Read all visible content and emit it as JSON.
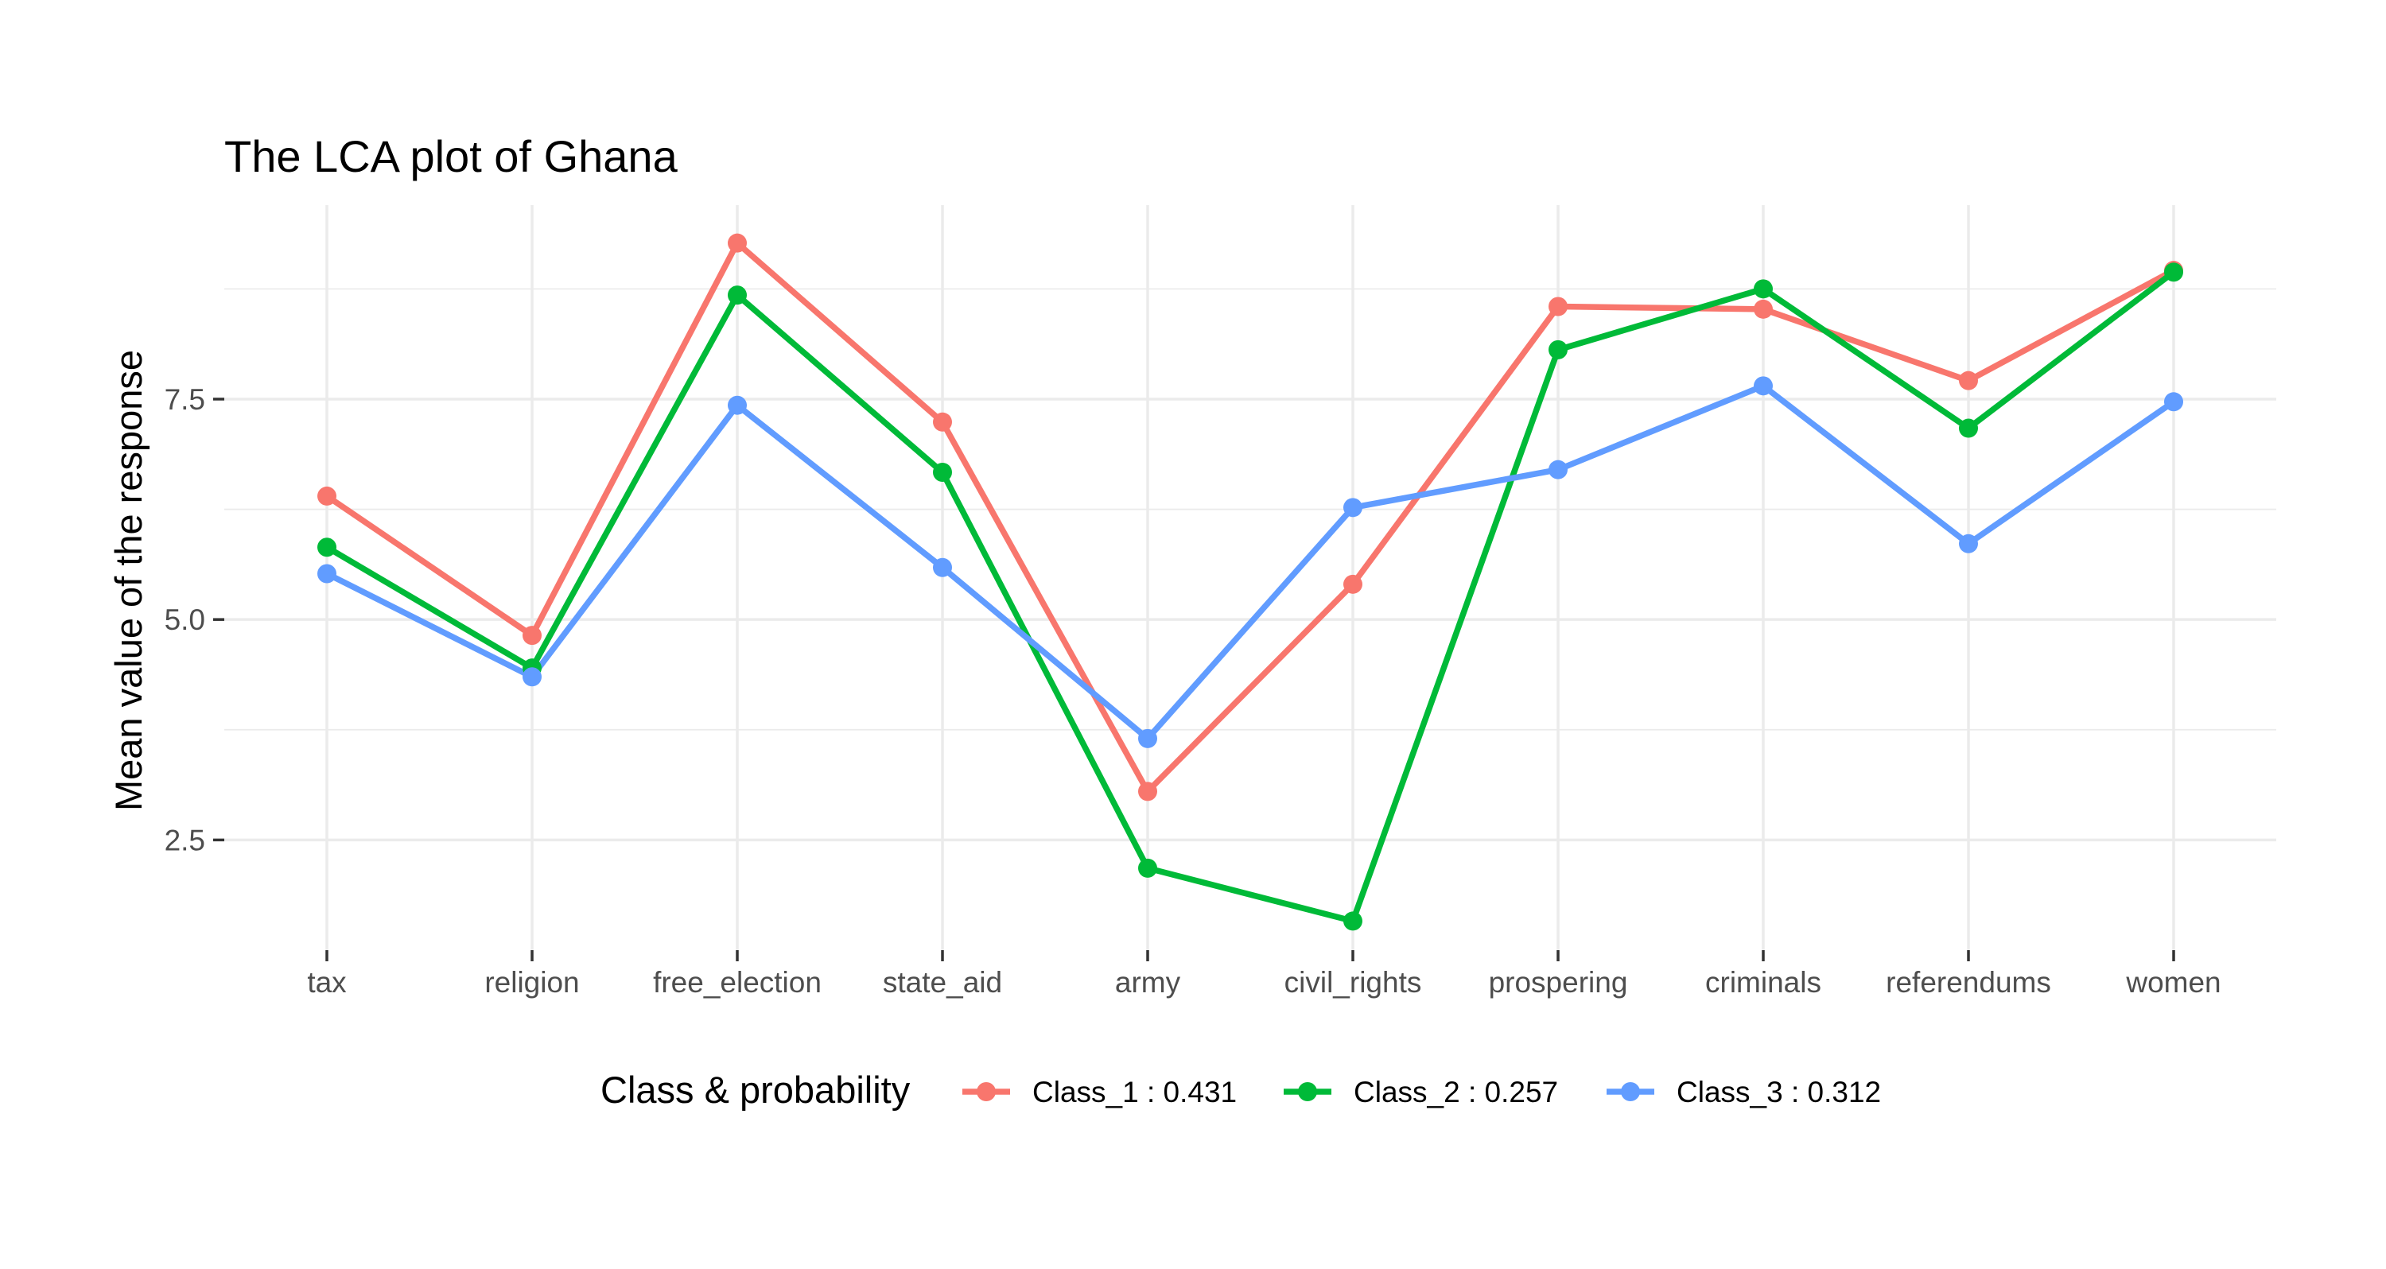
{
  "chart_data": {
    "type": "line",
    "title": "The LCA plot of Ghana",
    "xlabel": "",
    "ylabel": "Mean value of the response",
    "categories": [
      "tax",
      "religion",
      "free_election",
      "state_aid",
      "army",
      "civil_rights",
      "prospering",
      "criminals",
      "referendums",
      "women"
    ],
    "ylim": [
      1.25,
      9.7
    ],
    "yticks": [
      2.5,
      5.0,
      7.5
    ],
    "ytick_labels": [
      "2.5",
      "5.0",
      "7.5"
    ],
    "grid": true,
    "legend": {
      "title": "Class & probability",
      "position": "bottom"
    },
    "series": [
      {
        "name": "Class_1 : 0.431",
        "color": "#F8766D",
        "values": [
          6.4,
          4.82,
          9.27,
          7.24,
          3.05,
          5.4,
          8.55,
          8.52,
          7.71,
          8.96
        ]
      },
      {
        "name": "Class_2 : 0.257",
        "color": "#00BA38",
        "values": [
          5.82,
          4.45,
          8.68,
          6.67,
          2.18,
          1.58,
          8.06,
          8.75,
          7.17,
          8.94
        ]
      },
      {
        "name": "Class_3 : 0.312",
        "color": "#619CFF",
        "values": [
          5.52,
          4.35,
          7.43,
          5.59,
          3.65,
          6.27,
          6.7,
          7.65,
          5.86,
          7.47
        ]
      }
    ]
  }
}
